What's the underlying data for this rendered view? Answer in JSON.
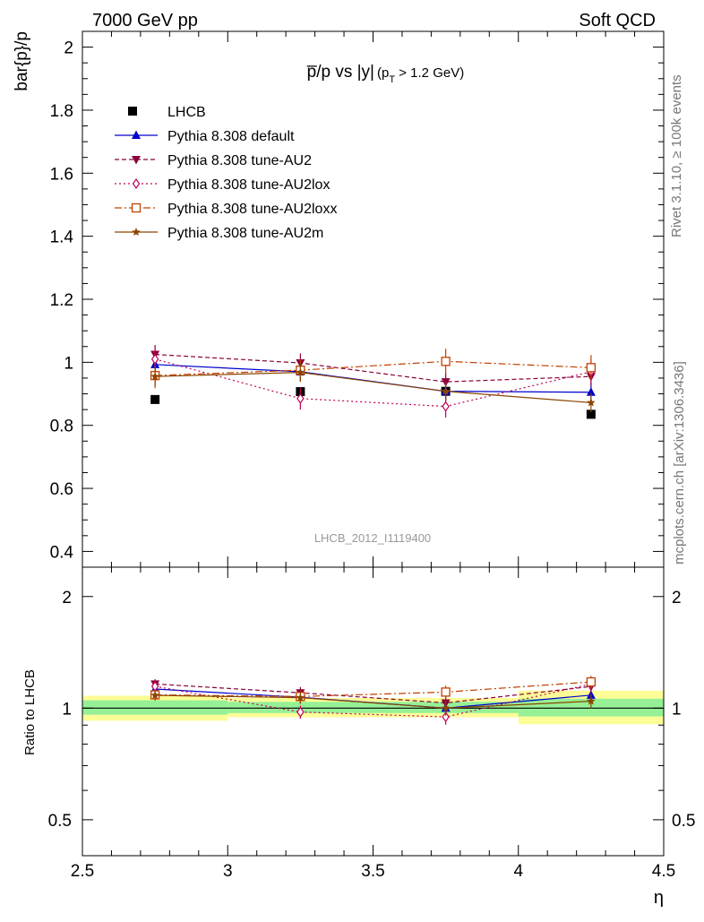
{
  "header": {
    "left_label": "7000 GeV pp",
    "right_label": "Soft QCD"
  },
  "side_labels": {
    "rivet": "Rivet 3.1.10, ≥ 100k events",
    "mcplots": "mcplots.cern.ch [arXiv:1306.3436]"
  },
  "watermark": "LHCB_2012_I1119400",
  "chart_data": {
    "type": "line",
    "title_main": "p̅/p vs |y|",
    "title_condition_prefix": "(p",
    "title_condition_sub": "T",
    "title_condition_suffix": " > 1.2 GeV)",
    "ylabel": "bar{p}/p",
    "xlabel": "η",
    "xlim": [
      2.5,
      4.5
    ],
    "ylim": [
      0.35,
      2.05
    ],
    "x_ticks": [
      "2.5",
      "3",
      "3.5",
      "4",
      "4.5"
    ],
    "y_ticks": [
      "0.4",
      "0.6",
      "0.8",
      "1",
      "1.2",
      "1.4",
      "1.6",
      "1.8",
      "2"
    ],
    "x": [
      2.75,
      3.25,
      3.75,
      4.25
    ],
    "bin_edges": [
      2.5,
      3.0,
      3.5,
      4.0,
      4.5
    ],
    "data": {
      "name": "LHCB",
      "values": [
        0.882,
        0.907,
        0.908,
        0.835
      ],
      "color": "#000000"
    },
    "series": [
      {
        "name": "Pythia 8.308 default",
        "values": [
          0.993,
          0.97,
          0.908,
          0.905
        ],
        "errors": [
          0.03,
          0.03,
          0.03,
          0.03
        ],
        "color": "#0000cc",
        "dash": "",
        "marker": "triangle-up"
      },
      {
        "name": "Pythia 8.308 tune-AU2",
        "values": [
          1.025,
          0.998,
          0.938,
          0.955
        ],
        "errors": [
          0.03,
          0.03,
          0.03,
          0.03
        ],
        "color": "#8b003a",
        "dash": "5,3",
        "marker": "triangle-down"
      },
      {
        "name": "Pythia 8.308 tune-AU2lox",
        "values": [
          1.01,
          0.885,
          0.86,
          0.97
        ],
        "errors": [
          0.035,
          0.035,
          0.035,
          0.035
        ],
        "color": "#c0005a",
        "dash": "2,3",
        "marker": "diamond-open"
      },
      {
        "name": "Pythia 8.308 tune-AU2loxx",
        "values": [
          0.958,
          0.975,
          1.003,
          0.983
        ],
        "errors": [
          0.04,
          0.035,
          0.04,
          0.04
        ],
        "color": "#c04000",
        "dash": "8,3,2,3",
        "marker": "square-open"
      },
      {
        "name": "Pythia 8.308 tune-AU2m",
        "values": [
          0.955,
          0.968,
          0.908,
          0.872
        ],
        "errors": [
          0.03,
          0.03,
          0.03,
          0.03
        ],
        "color": "#8b4500",
        "dash": "",
        "marker": "star"
      }
    ],
    "ratio": {
      "ylabel": "Ratio to LHCB",
      "y_ticks": [
        "0.5",
        "1",
        "2"
      ],
      "ylim": [
        0.4,
        2.4
      ],
      "log_scale": true,
      "band_green": [
        [
          0.96,
          1.05
        ],
        [
          0.97,
          1.04
        ],
        [
          0.97,
          1.04
        ],
        [
          0.95,
          1.06
        ]
      ],
      "band_yellow": [
        [
          0.925,
          1.08
        ],
        [
          0.945,
          1.065
        ],
        [
          0.945,
          1.065
        ],
        [
          0.905,
          1.115
        ]
      ],
      "series_values": [
        [
          1.126,
          1.07,
          1.0,
          1.084
        ],
        [
          1.162,
          1.1,
          1.033,
          1.144
        ],
        [
          1.145,
          0.976,
          0.947,
          1.162
        ],
        [
          1.086,
          1.075,
          1.105,
          1.177
        ],
        [
          1.083,
          1.067,
          1.0,
          1.044
        ]
      ],
      "series_errors": [
        0.035,
        0.04,
        0.045,
        0.045
      ]
    }
  }
}
